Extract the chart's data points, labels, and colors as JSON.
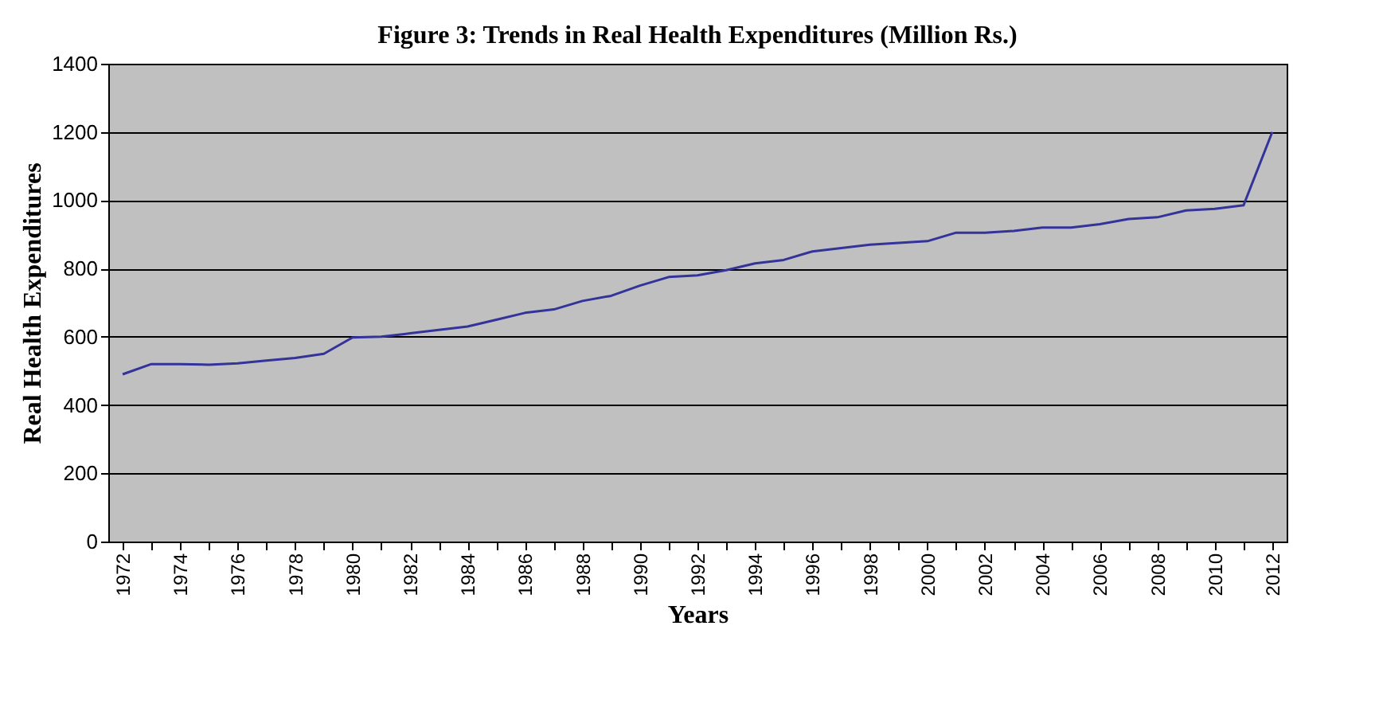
{
  "chart_data": {
    "type": "line",
    "title": "Figure 3: Trends in Real Health Expenditures (Million Rs.)",
    "xlabel": "Years",
    "ylabel": "Real Health Expenditures",
    "categories": [
      "1972",
      null,
      "1974",
      null,
      "1976",
      null,
      "1978",
      null,
      "1980",
      null,
      "1982",
      null,
      "1984",
      null,
      "1986",
      null,
      "1988",
      null,
      "1990",
      null,
      "1992",
      null,
      "1994",
      null,
      "1996",
      null,
      "1998",
      null,
      "2000",
      null,
      "2002",
      null,
      "2004",
      null,
      "2006",
      null,
      "2008",
      null,
      "2010",
      null,
      "2012"
    ],
    "series": [
      {
        "color": "#333399",
        "values": [
          490,
          520,
          520,
          518,
          522,
          530,
          538,
          550,
          598,
          600,
          610,
          620,
          630,
          650,
          670,
          680,
          705,
          720,
          750,
          775,
          780,
          795,
          815,
          825,
          850,
          860,
          870,
          875,
          880,
          905,
          905,
          910,
          920,
          920,
          930,
          945,
          950,
          970,
          975,
          985,
          1200
        ]
      }
    ],
    "ylim": [
      0,
      1400
    ],
    "yticks": [
      0,
      200,
      400,
      600,
      800,
      1000,
      1200,
      1400
    ],
    "grid": "y",
    "legend": false
  }
}
